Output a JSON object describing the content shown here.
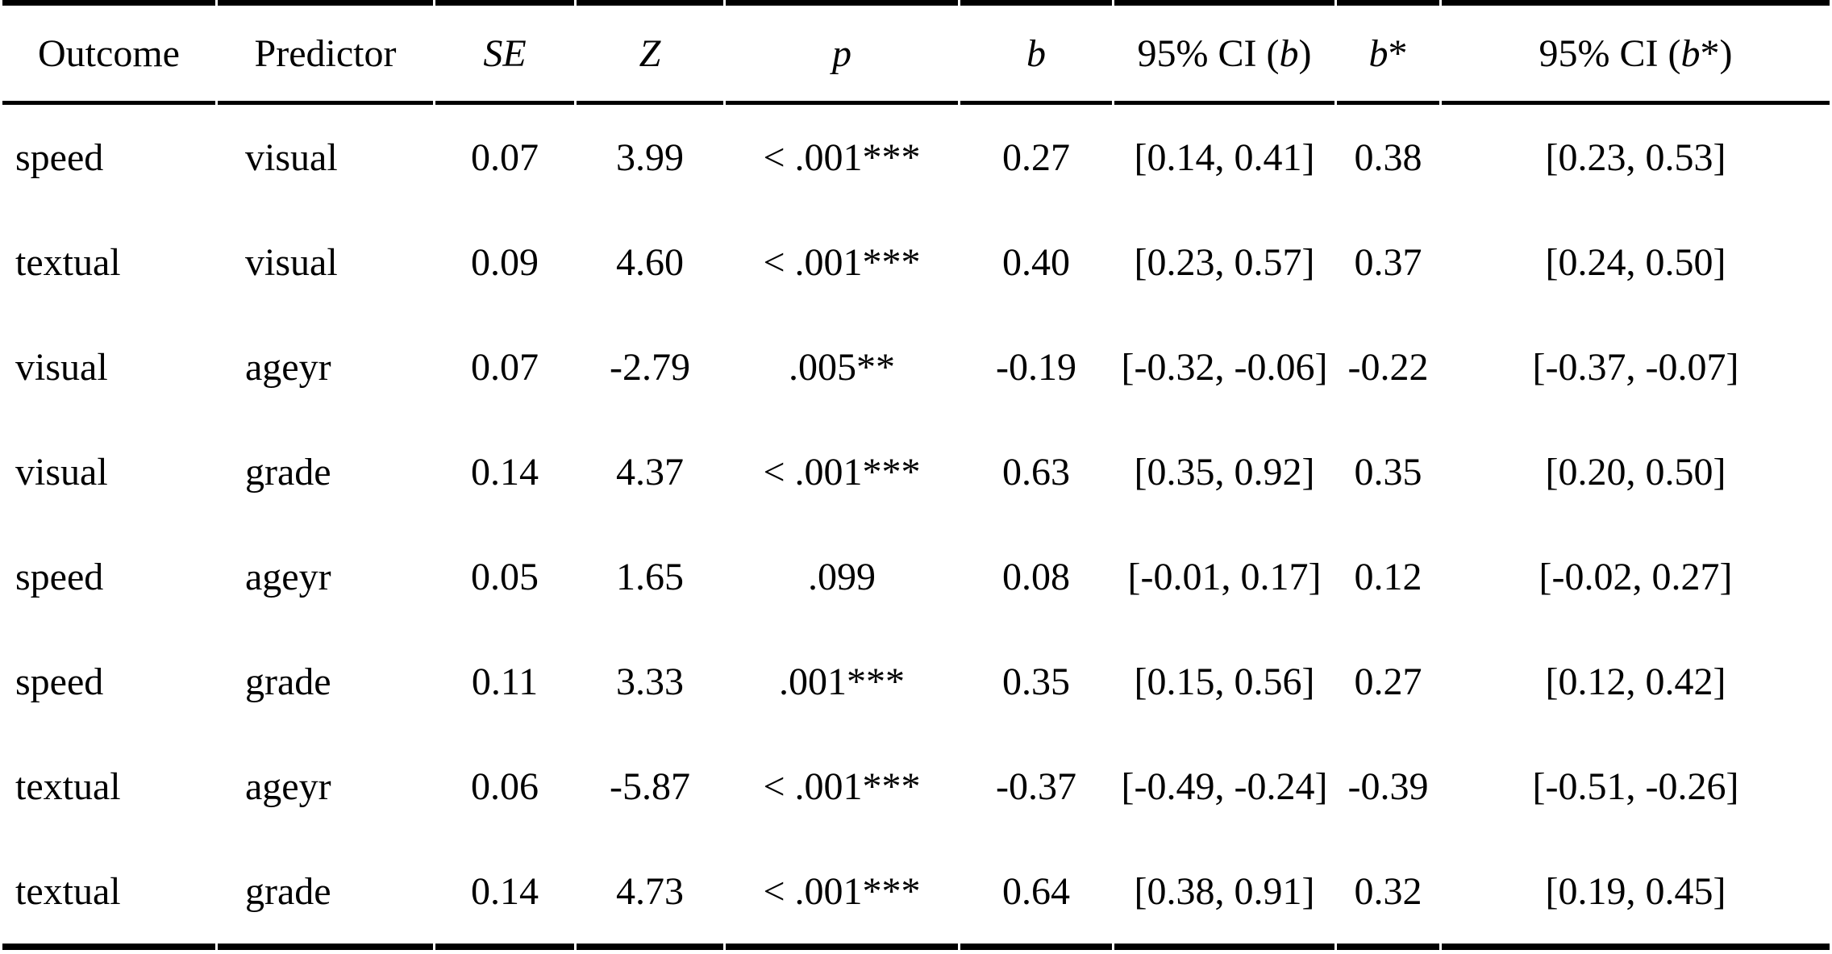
{
  "table": {
    "description": "Regression results table",
    "colors": {
      "text": "#000000",
      "border": "#000000",
      "background": "#ffffff"
    },
    "columns": [
      {
        "id": "outcome",
        "header": [
          {
            "t": "Outcome",
            "i": false
          }
        ]
      },
      {
        "id": "predictor",
        "header": [
          {
            "t": "Predictor",
            "i": false
          }
        ]
      },
      {
        "id": "se",
        "header": [
          {
            "t": "SE",
            "i": true
          }
        ]
      },
      {
        "id": "z",
        "header": [
          {
            "t": "Z",
            "i": true
          }
        ]
      },
      {
        "id": "p",
        "header": [
          {
            "t": "p",
            "i": true
          }
        ]
      },
      {
        "id": "b",
        "header": [
          {
            "t": "b",
            "i": true
          }
        ]
      },
      {
        "id": "ci-b",
        "header": [
          {
            "t": "95% CI (",
            "i": false
          },
          {
            "t": "b",
            "i": true
          },
          {
            "t": ")",
            "i": false
          }
        ]
      },
      {
        "id": "b-star",
        "header": [
          {
            "t": "b",
            "i": true
          },
          {
            "t": "*",
            "i": false
          }
        ]
      },
      {
        "id": "ci-b-star",
        "header": [
          {
            "t": "95% CI (",
            "i": false
          },
          {
            "t": "b",
            "i": true
          },
          {
            "t": "*)",
            "i": false
          }
        ]
      }
    ],
    "rows": [
      [
        "speed",
        "visual",
        "0.07",
        "3.99",
        "< .001***",
        "0.27",
        "[0.14, 0.41]",
        "0.38",
        "[0.23, 0.53]"
      ],
      [
        "textual",
        "visual",
        "0.09",
        "4.60",
        "< .001***",
        "0.40",
        "[0.23, 0.57]",
        "0.37",
        "[0.24, 0.50]"
      ],
      [
        "visual",
        "ageyr",
        "0.07",
        "-2.79",
        ".005**",
        "-0.19",
        "[-0.32, -0.06]",
        "-0.22",
        "[-0.37, -0.07]"
      ],
      [
        "visual",
        "grade",
        "0.14",
        "4.37",
        "< .001***",
        "0.63",
        "[0.35, 0.92]",
        "0.35",
        "[0.20, 0.50]"
      ],
      [
        "speed",
        "ageyr",
        "0.05",
        "1.65",
        ".099",
        "0.08",
        "[-0.01, 0.17]",
        "0.12",
        "[-0.02, 0.27]"
      ],
      [
        "speed",
        "grade",
        "0.11",
        "3.33",
        ".001***",
        "0.35",
        "[0.15, 0.56]",
        "0.27",
        "[0.12, 0.42]"
      ],
      [
        "textual",
        "ageyr",
        "0.06",
        "-5.87",
        "< .001***",
        "-0.37",
        "[-0.49, -0.24]",
        "-0.39",
        "[-0.51, -0.26]"
      ],
      [
        "textual",
        "grade",
        "0.14",
        "4.73",
        "< .001***",
        "0.64",
        "[0.38, 0.91]",
        "0.32",
        "[0.19, 0.45]"
      ]
    ]
  }
}
